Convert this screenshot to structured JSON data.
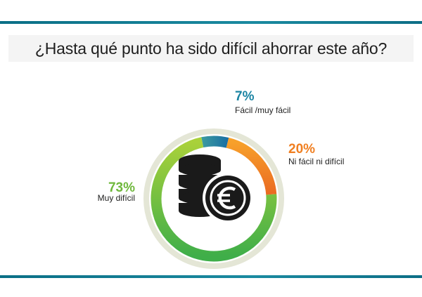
{
  "header": {
    "title": "¿Hasta qué punto ha sido difícil ahorrar este año?"
  },
  "chart_data": {
    "type": "pie",
    "categories": [
      "Fácil /muy fácil",
      "Ni fácil ni difícil",
      "Muy difícil"
    ],
    "values": [
      7,
      20,
      73
    ],
    "value_labels": [
      "7%",
      "20%",
      "73%"
    ],
    "colors": [
      "#1b84a3",
      "#f07f21",
      "#7bc143"
    ],
    "style": "donut",
    "center_icon": "coins-euro-icon",
    "legend": "none"
  }
}
